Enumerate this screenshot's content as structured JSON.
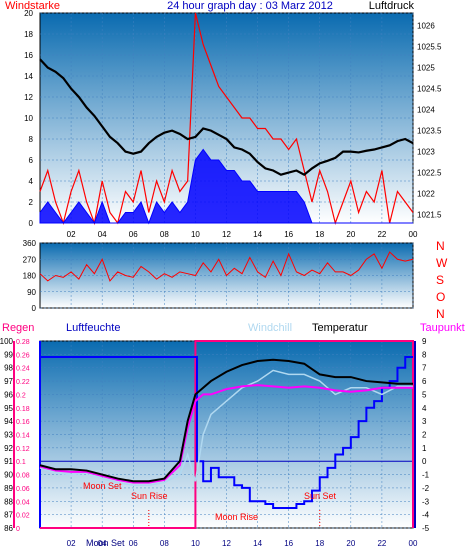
{
  "title": "24 hour graph day : 03 Marz 2012",
  "colors": {
    "wind": "#ff0000",
    "gust": "#0000ff",
    "pressure": "#000000",
    "direction": "#ff0000",
    "humidity": "#0000ff",
    "windchill": "#b0d8f0",
    "temperature": "#000000",
    "dewpoint": "#ff00ff",
    "rain": "#ff0080",
    "bg_top": "#0a6bb0",
    "bg_bottom": "#ffffff"
  },
  "chart_data": [
    {
      "type": "line",
      "left_label": "Windstarke",
      "right_label": "Luftdruck",
      "x_ticks": [
        "02",
        "04",
        "06",
        "08",
        "10",
        "12",
        "14",
        "16",
        "18",
        "20",
        "22",
        "00"
      ],
      "y_left_ticks": [
        "0",
        "2",
        "4",
        "6",
        "8",
        "10",
        "12",
        "14",
        "16",
        "18",
        "20"
      ],
      "y_left_range": [
        0,
        20
      ],
      "y_right_ticks": [
        "1021.5",
        "1022",
        "1022.5",
        "1023",
        "1023.5",
        "1024",
        "1024.5",
        "1025",
        "1025.5",
        "1026"
      ],
      "y_right_range": [
        1021.3,
        1026.3
      ],
      "series": [
        {
          "role": "pressure",
          "x": [
            0,
            0.5,
            1,
            1.5,
            2,
            2.5,
            3,
            3.5,
            4,
            4.5,
            5,
            5.5,
            6,
            6.5,
            7,
            7.5,
            8,
            8.5,
            9,
            9.5,
            10,
            10.5,
            11,
            11.5,
            12,
            12.5,
            13,
            13.5,
            14,
            14.5,
            15,
            15.5,
            16,
            16.5,
            17,
            17.5,
            18,
            18.5,
            19,
            19.5,
            20,
            20.5,
            21,
            21.5,
            22,
            22.5,
            23,
            23.5,
            24
          ],
          "values": [
            1025.2,
            1025.0,
            1024.9,
            1024.75,
            1024.5,
            1024.3,
            1024.05,
            1023.85,
            1023.6,
            1023.35,
            1023.2,
            1023.0,
            1022.95,
            1023.0,
            1023.2,
            1023.35,
            1023.45,
            1023.5,
            1023.42,
            1023.3,
            1023.35,
            1023.55,
            1023.5,
            1023.4,
            1023.3,
            1023.1,
            1023.05,
            1022.95,
            1022.75,
            1022.6,
            1022.55,
            1022.45,
            1022.5,
            1022.55,
            1022.45,
            1022.6,
            1022.72,
            1022.78,
            1022.85,
            1023.0,
            1023.0,
            1022.98,
            1023.02,
            1023.05,
            1023.1,
            1023.15,
            1023.25,
            1023.3,
            1023.2
          ]
        },
        {
          "role": "wind_max",
          "x": [
            0,
            0.5,
            1,
            1.5,
            2,
            2.5,
            3,
            3.5,
            4,
            4.5,
            5,
            5.5,
            6,
            6.5,
            7,
            7.5,
            8,
            8.5,
            9,
            9.5,
            10,
            10.5,
            11,
            11.5,
            12,
            12.5,
            13,
            13.5,
            14,
            14.5,
            15,
            15.5,
            16,
            16.5,
            17,
            17.5,
            18,
            18.5,
            19,
            19.5,
            20,
            20.5,
            21,
            21.5,
            22,
            22.5,
            23,
            23.5,
            24
          ],
          "values": [
            3,
            5,
            2,
            0,
            3,
            5,
            2,
            0,
            4,
            1,
            0,
            3,
            2,
            5,
            1,
            4,
            2,
            5,
            3,
            4,
            20,
            17,
            15,
            13,
            12,
            11,
            10,
            10,
            9,
            9,
            8,
            8,
            7,
            8,
            5,
            2,
            5,
            3,
            0,
            2,
            4,
            1,
            3,
            2,
            5,
            0,
            3,
            2,
            1
          ]
        },
        {
          "role": "gust",
          "x": [
            0,
            0.5,
            1,
            1.5,
            2,
            2.5,
            3,
            3.5,
            4,
            4.5,
            5,
            5.5,
            6,
            6.5,
            7,
            7.5,
            8,
            8.5,
            9,
            9.5,
            10,
            10.5,
            11,
            11.5,
            12,
            12.5,
            13,
            13.5,
            14,
            14.5,
            15,
            15.5,
            16,
            16.5,
            17,
            17.5,
            18,
            18.5,
            19,
            19.5,
            20,
            20.5,
            21,
            21.5,
            22,
            22.5,
            23,
            23.5,
            24
          ],
          "values": [
            1,
            2,
            1,
            0,
            1,
            2,
            1,
            0,
            2,
            0,
            0,
            1,
            1,
            2,
            0,
            2,
            1,
            2,
            1,
            2,
            6,
            7,
            6,
            6,
            5,
            5,
            4,
            4,
            3,
            3,
            3,
            3,
            3,
            3,
            2,
            0,
            0,
            0,
            0,
            0,
            0,
            0,
            0,
            0,
            0,
            0,
            0,
            0,
            0
          ]
        }
      ]
    },
    {
      "type": "line",
      "right_letters": [
        "N",
        "W",
        "S",
        "O",
        "N"
      ],
      "y_ticks": [
        "0",
        "90",
        "180",
        "270",
        "360"
      ],
      "y_range": [
        0,
        360
      ],
      "series": [
        {
          "role": "wind_direction",
          "x": [
            0,
            0.5,
            1,
            1.5,
            2,
            2.5,
            3,
            3.5,
            4,
            4.5,
            5,
            5.5,
            6,
            6.5,
            7,
            7.5,
            8,
            8.5,
            9,
            9.5,
            10,
            10.5,
            11,
            11.5,
            12,
            12.5,
            13,
            13.5,
            14,
            14.5,
            15,
            15.5,
            16,
            16.5,
            17,
            17.5,
            18,
            18.5,
            19,
            19.5,
            20,
            20.5,
            21,
            21.5,
            22,
            22.5,
            23,
            23.5,
            24
          ],
          "values": [
            190,
            150,
            180,
            170,
            200,
            160,
            240,
            190,
            270,
            150,
            200,
            180,
            170,
            230,
            200,
            160,
            190,
            170,
            200,
            190,
            180,
            250,
            200,
            270,
            180,
            220,
            190,
            280,
            200,
            170,
            260,
            180,
            300,
            200,
            180,
            210,
            190,
            250,
            200,
            200,
            180,
            210,
            270,
            300,
            220,
            310,
            270,
            260,
            270
          ]
        }
      ]
    },
    {
      "type": "line",
      "left_label_1": "Regen",
      "left_label_2": "Luftfeuchte",
      "legend": [
        "Windchill",
        "Temperatur",
        "Taupunkt"
      ],
      "y_left_ticks": [
        "86",
        "87",
        "88",
        "89",
        "90",
        "91",
        "92",
        "93",
        "94",
        "95",
        "96",
        "97",
        "98",
        "99",
        "100"
      ],
      "y_rain_ticks": [
        "0",
        "0.02",
        "0.04",
        "0.06",
        "0.08",
        "0.1",
        "0.12",
        "0.14",
        "0.16",
        "0.18",
        "0.2",
        "0.22",
        "0.24",
        "0.26",
        "0.28"
      ],
      "y_left_range": [
        86,
        100
      ],
      "y_right_ticks": [
        "-5",
        "-4",
        "-3",
        "-2",
        "-1",
        "0",
        "1",
        "2",
        "3",
        "4",
        "5",
        "6",
        "7",
        "8",
        "9"
      ],
      "y_right_range": [
        -5,
        9
      ],
      "x_ticks": [
        "02",
        "04",
        "06",
        "08",
        "10",
        "12",
        "14",
        "16",
        "18",
        "20",
        "22",
        "00"
      ],
      "annotations": [
        "Moon Set",
        "Sun Rise",
        "Moon Rise",
        "Sun Set",
        "Moon Set"
      ],
      "series": [
        {
          "role": "humidity",
          "x": [
            0,
            10,
            10.1,
            10.5,
            11,
            11.5,
            12,
            12.5,
            13,
            13.5,
            14,
            14.5,
            15,
            15.5,
            16,
            16.5,
            17,
            17.5,
            18,
            18.5,
            19,
            19.5,
            20,
            20.5,
            21,
            21.5,
            22,
            22.5,
            23,
            23.5,
            24
          ],
          "values": [
            98.8,
            98.8,
            91.0,
            89.5,
            90.5,
            89.8,
            89.8,
            89.2,
            89.0,
            88.0,
            88.0,
            87.8,
            87.5,
            87.5,
            87.5,
            87.8,
            88.0,
            88.8,
            89.8,
            90.5,
            91.5,
            92.0,
            92.8,
            94.0,
            95.0,
            95.5,
            96.5,
            97.0,
            98.0,
            98.8,
            98.8
          ]
        },
        {
          "role": "temperature",
          "x": [
            0,
            1,
            2,
            3,
            4,
            5,
            6,
            7,
            8,
            9,
            9.5,
            10,
            10.5,
            11,
            12,
            13,
            14,
            15,
            16,
            17,
            18,
            19,
            20,
            21,
            22,
            23,
            24
          ],
          "values": [
            -0.3,
            -0.6,
            -0.6,
            -0.7,
            -1.0,
            -1.3,
            -1.5,
            -1.5,
            -1.3,
            0.0,
            3.0,
            5.0,
            5.5,
            6.0,
            6.7,
            7.2,
            7.5,
            7.6,
            7.5,
            7.3,
            6.5,
            6.3,
            6.3,
            6.0,
            5.9,
            5.8,
            5.8
          ]
        },
        {
          "role": "dewpoint",
          "x": [
            0,
            1,
            2,
            3,
            4,
            5,
            6,
            7,
            8,
            9,
            9.5,
            10,
            10.5,
            11,
            12,
            13,
            14,
            15,
            16,
            17,
            18,
            19,
            20,
            21,
            22,
            23,
            24
          ],
          "values": [
            -0.4,
            -0.7,
            -0.8,
            -0.8,
            -1.1,
            -1.4,
            -1.6,
            -1.6,
            -1.4,
            -0.3,
            2.5,
            4.5,
            5.0,
            5.0,
            5.4,
            5.6,
            5.7,
            5.6,
            5.5,
            5.6,
            5.5,
            5.3,
            5.2,
            5.3,
            5.5,
            5.5,
            5.5
          ]
        },
        {
          "role": "windchill",
          "x": [
            0,
            1,
            2,
            3,
            4,
            5,
            6,
            7,
            8,
            9,
            9.5,
            10,
            10.5,
            11,
            12,
            13,
            14,
            15,
            16,
            17,
            18,
            19,
            20,
            21,
            22,
            23,
            24
          ],
          "values": [
            -0.5,
            -0.9,
            -1.0,
            -0.9,
            -1.3,
            -1.6,
            -1.8,
            -1.8,
            -1.6,
            -1.0,
            0.5,
            -1.5,
            2.0,
            3.5,
            4.5,
            5.5,
            6.0,
            6.8,
            6.5,
            6.5,
            6.0,
            5.0,
            5.5,
            5.5,
            5.0,
            5.6,
            5.6
          ]
        },
        {
          "role": "rain",
          "x": [
            0,
            10,
            10,
            24,
            24
          ],
          "values": [
            0,
            0,
            0.28,
            0.28,
            0
          ]
        }
      ]
    }
  ]
}
